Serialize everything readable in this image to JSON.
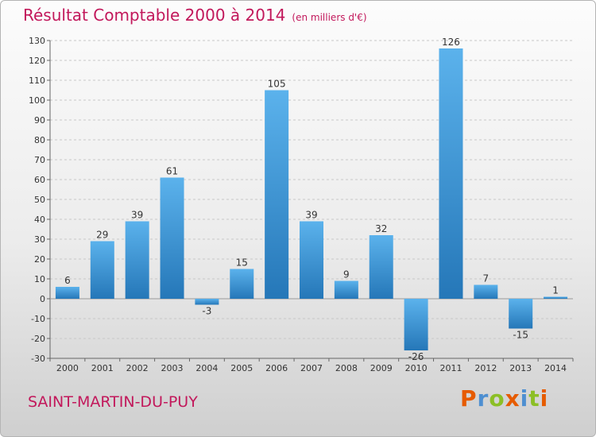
{
  "header": {
    "title": "Résultat Comptable 2000 à 2014",
    "unit": "(en milliers d'€)"
  },
  "footer": {
    "commune": "SAINT-MARTIN-DU-PUY",
    "logo": "Proxiti"
  },
  "colors": {
    "title": "#c2185b",
    "bar_light": "#5bb2ec",
    "bar_dark": "#2577b8",
    "logo": [
      "#e65b00",
      "#4e8fd1",
      "#8cbf26",
      "#e65b00",
      "#4e8fd1",
      "#8cbf26",
      "#e65b00"
    ]
  },
  "chart_data": {
    "type": "bar",
    "categories": [
      "2000",
      "2001",
      "2002",
      "2003",
      "2004",
      "2005",
      "2006",
      "2007",
      "2008",
      "2009",
      "2010",
      "2011",
      "2012",
      "2013",
      "2014"
    ],
    "values": [
      6,
      29,
      39,
      61,
      -3,
      15,
      105,
      39,
      9,
      32,
      -26,
      126,
      7,
      -15,
      1
    ],
    "title": "Résultat Comptable 2000 à 2014",
    "xlabel": "",
    "ylabel": "",
    "ylim": [
      -30,
      130
    ],
    "ytick_step": 10,
    "grid": "horizontal-dashed"
  }
}
